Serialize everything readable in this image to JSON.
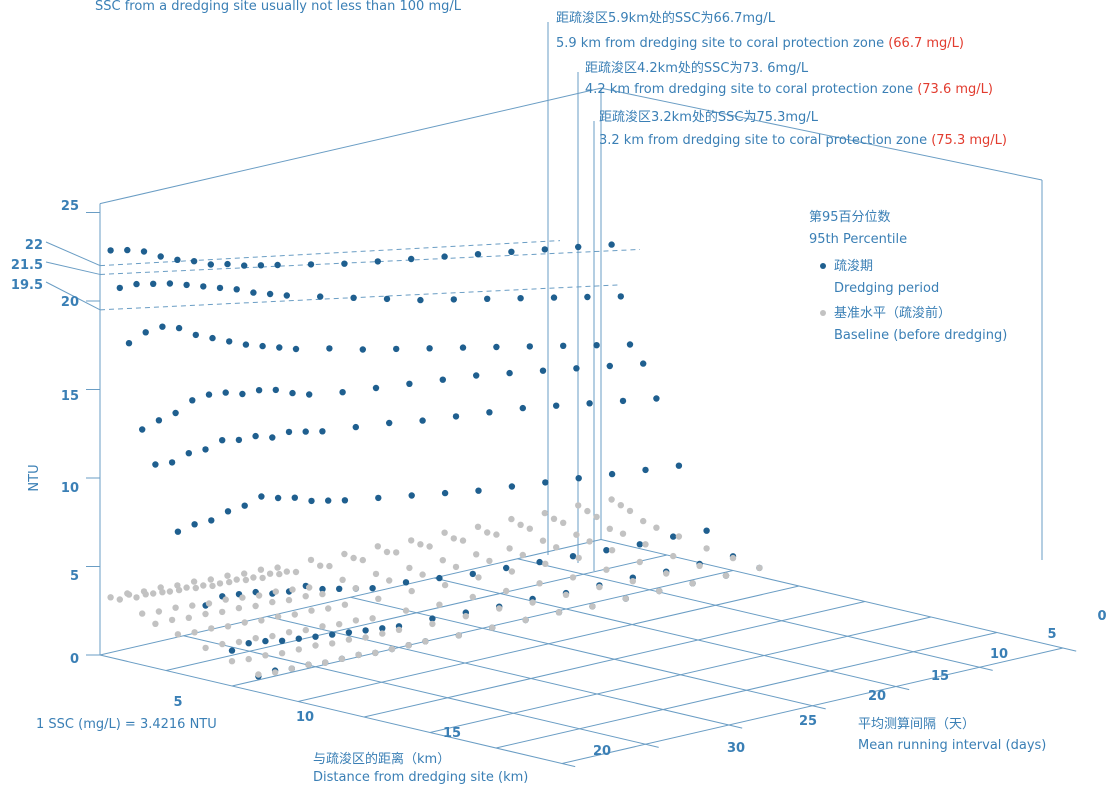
{
  "colors": {
    "axis": "#6a9dc4",
    "text": "#3a7fb5",
    "red": "#e23c2f",
    "dredging": "#1f5f8f",
    "baseline": "#c2c2c2"
  },
  "top_note": "SSC from a dredging site usually not less than 100 mg/L",
  "conversion": "1 SSC (mg/L) = 3.4216 NTU",
  "annotations": [
    {
      "cn": "距疏浚区5.9km处的SSC为66.7mg/L",
      "en": "5.9 km from dredging site to coral protection zone",
      "value": "(66.7 mg/L)",
      "distance_km": 5.9,
      "ssc_mg_l": 66.7
    },
    {
      "cn": "距疏浚区4.2km处的SSC为73. 6mg/L",
      "en": "4.2 km from dredging site to coral protection zone",
      "value": "(73.6 mg/L)",
      "distance_km": 4.2,
      "ssc_mg_l": 73.6
    },
    {
      "cn": "距疏浚区3.2km处的SSC为75.3mg/L",
      "en": "3.2 km from dredging site to coral protection zone",
      "value": "(75.3 mg/L)",
      "distance_km": 3.2,
      "ssc_mg_l": 75.3
    }
  ],
  "legend": {
    "title_cn": "第95百分位数",
    "title_en": "95th Percentile",
    "items": [
      {
        "cn": "疏浚期",
        "en": "Dredging period",
        "color": "#1f5f8f"
      },
      {
        "cn": "基准水平（疏浚前）",
        "en": "Baseline (before dredging)",
        "color": "#c2c2c2"
      }
    ]
  },
  "chart_data": {
    "type": "scatter",
    "z_label": "NTU",
    "x_label_cn": "与疏浚区的距离（km）",
    "x_label_en": "Distance from dredging site (km)",
    "y_label_cn": "平均测算间隔（天）",
    "y_label_en": "Mean running interval (days)",
    "z_ticks": [
      "0",
      "5",
      "10",
      "15",
      "20",
      "25"
    ],
    "z_extra_ticks": [
      "19.5",
      "21.5",
      "22"
    ],
    "x_ticks": [
      "5",
      "10",
      "15",
      "20"
    ],
    "x_ticks_back": [
      "25",
      "30"
    ],
    "y_ticks": [
      "0",
      "5",
      "10",
      "15",
      "20"
    ],
    "distances_km": [
      0.8,
      1.5,
      2.2,
      3.2,
      4.2,
      5.9,
      8,
      10,
      12
    ],
    "intervals_days": [
      0,
      1,
      2,
      3,
      4,
      5,
      6,
      7,
      8,
      9,
      10,
      12,
      14,
      16,
      18,
      20,
      22,
      24,
      26,
      28,
      30
    ],
    "series": [
      {
        "name": "疏浚期 Dredging period",
        "profiles": [
          [
            23.0,
            22.8,
            22.5,
            22.0,
            21.6,
            21.3,
            20.9,
            20.7,
            20.4,
            20.2,
            20.0,
            19.6,
            19.2,
            18.9,
            18.6,
            18.3,
            18.0,
            17.7,
            17.4,
            17.1,
            16.8
          ],
          [
            21.0,
            21.0,
            20.8,
            20.6,
            20.3,
            20.0,
            19.7,
            19.4,
            19.0,
            18.7,
            18.4,
            17.9,
            17.4,
            16.9,
            16.4,
            16.0,
            15.6,
            15.2,
            14.8,
            14.4,
            14.0
          ],
          [
            18.0,
            18.4,
            18.5,
            18.2,
            17.6,
            17.2,
            16.8,
            16.4,
            16.1,
            15.8,
            15.5,
            15.1,
            14.6,
            14.2,
            13.8,
            13.4,
            13.0,
            12.6,
            12.2,
            11.8,
            11.4
          ],
          [
            13.3,
            13.6,
            13.8,
            14.3,
            14.4,
            14.3,
            14.0,
            14.0,
            13.8,
            13.4,
            13.1,
            12.8,
            12.6,
            12.4,
            12.2,
            12.0,
            11.7,
            11.4,
            11.1,
            10.8,
            10.5
          ],
          [
            11.5,
            11.4,
            11.7,
            11.7,
            12.0,
            11.8,
            11.8,
            11.5,
            11.6,
            11.4,
            11.2,
            11.0,
            10.8,
            10.5,
            10.3,
            10.1,
            9.9,
            9.6,
            9.3,
            9.0,
            8.7
          ],
          [
            8.0,
            8.2,
            8.2,
            8.5,
            8.6,
            8.9,
            8.6,
            8.4,
            8.0,
            7.8,
            7.6,
            7.3,
            7.0,
            6.7,
            6.4,
            6.2,
            6.0,
            5.8,
            5.6,
            5.4,
            5.2
          ],
          [
            4.2,
            4.5,
            4.4,
            4.3,
            4.0,
            3.9,
            4.0,
            3.6,
            3.4,
            3.2,
            3.0,
            2.9,
            2.7,
            2.5,
            2.4,
            2.3,
            2.2,
            2.1,
            2.0,
            2.0,
            1.9
          ],
          [
            2.0,
            2.2,
            2.1,
            1.9,
            1.8,
            1.7,
            1.6,
            1.5,
            1.4,
            1.3,
            1.2,
            1.2,
            1.1,
            1.0,
            1.0,
            0.9,
            0.9,
            0.9,
            0.8,
            0.8,
            0.8
          ],
          [
            0.9,
            1.0,
            0.9,
            0.9,
            0.8,
            0.8,
            0.8,
            0.7,
            0.7,
            0.7,
            0.7,
            0.6,
            0.6,
            0.6,
            0.6,
            0.5,
            0.5,
            0.5,
            0.5,
            0.5,
            0.5
          ]
        ]
      },
      {
        "name": "基准水平（疏浚前） Baseline (before dredging)",
        "profiles": [
          [
            3.4,
            3.4,
            3.3,
            3.3,
            3.2,
            3.2,
            3.1,
            3.1,
            3.0,
            3.0,
            2.9,
            2.9,
            2.8,
            2.8,
            2.7,
            2.7,
            2.6,
            2.6,
            2.5,
            2.5,
            2.4
          ],
          [
            3.4,
            3.3,
            3.3,
            3.2,
            3.2,
            3.1,
            3.0,
            3.0,
            2.9,
            2.9,
            2.8,
            2.7,
            2.7,
            2.6,
            2.6,
            2.5,
            2.4,
            2.4,
            2.3,
            2.3,
            2.2
          ],
          [
            3.8,
            3.6,
            3.5,
            3.4,
            3.3,
            3.2,
            3.2,
            3.1,
            3.0,
            3.0,
            2.9,
            2.8,
            2.7,
            2.7,
            2.6,
            2.5,
            2.4,
            2.3,
            2.2,
            2.1,
            2.0
          ],
          [
            2.9,
            2.8,
            2.8,
            2.7,
            2.6,
            2.6,
            2.5,
            2.4,
            2.4,
            2.3,
            2.2,
            2.2,
            2.1,
            2.0,
            2.0,
            1.9,
            1.8,
            1.8,
            1.7,
            1.6,
            1.6
          ],
          [
            2.5,
            2.5,
            2.4,
            2.4,
            2.3,
            2.3,
            2.2,
            2.2,
            2.1,
            2.1,
            2.0,
            1.9,
            1.9,
            1.8,
            1.8,
            1.7,
            1.6,
            1.6,
            1.5,
            1.5,
            1.4
          ],
          [
            2.2,
            2.1,
            2.1,
            2.0,
            2.0,
            1.9,
            1.9,
            1.8,
            1.8,
            1.7,
            1.7,
            1.6,
            1.6,
            1.5,
            1.5,
            1.4,
            1.4,
            1.3,
            1.3,
            1.2,
            1.2
          ],
          [
            1.8,
            1.8,
            1.7,
            1.7,
            1.6,
            1.6,
            1.5,
            1.5,
            1.4,
            1.4,
            1.3,
            1.3,
            1.2,
            1.2,
            1.1,
            1.1,
            1.0,
            1.0,
            1.0,
            0.9,
            0.9
          ],
          [
            1.4,
            1.3,
            1.3,
            1.2,
            1.2,
            1.2,
            1.1,
            1.1,
            1.0,
            1.0,
            1.0,
            0.9,
            0.9,
            0.9,
            0.8,
            0.8,
            0.8,
            0.7,
            0.7,
            0.7,
            0.7
          ],
          [
            1.0,
            0.9,
            0.9,
            0.9,
            0.8,
            0.8,
            0.8,
            0.7,
            0.7,
            0.7,
            0.7,
            0.6,
            0.6,
            0.6,
            0.6,
            0.5,
            0.5,
            0.5,
            0.5,
            0.5,
            0.5
          ]
        ]
      }
    ]
  }
}
